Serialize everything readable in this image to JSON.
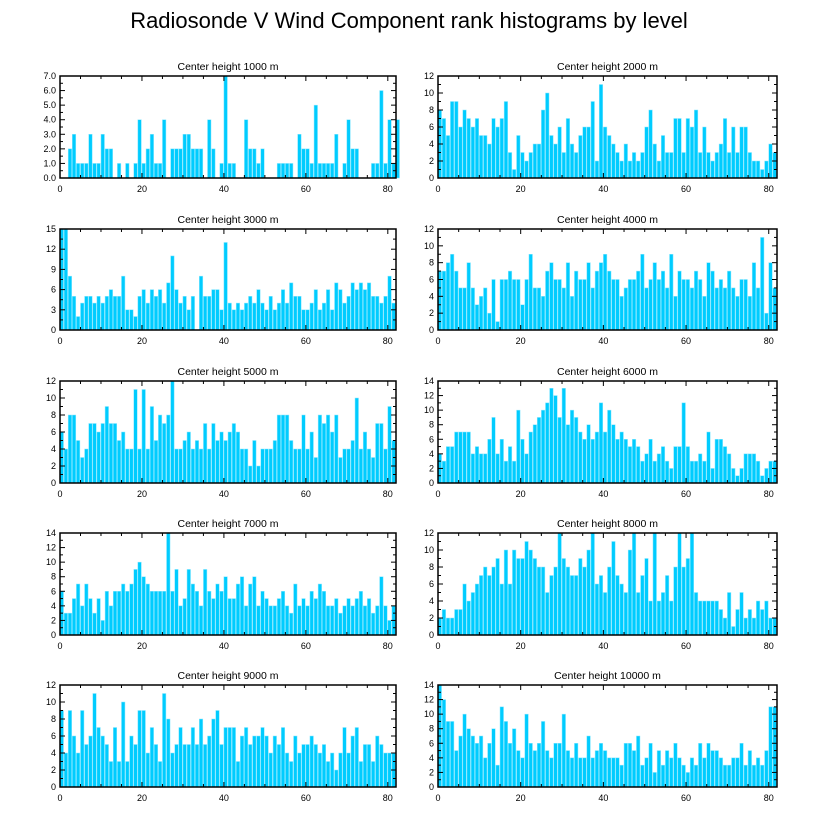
{
  "title": "Radiosonde V Wind Component rank histograms by level",
  "colors": {
    "bar": "#00ccff",
    "bar_edge": "#8ee8ff",
    "frame": "#000000"
  },
  "chart_data": [
    {
      "type": "bar",
      "title": "Center height 1000 m",
      "xlim": [
        0,
        82
      ],
      "ylim": [
        0,
        7
      ],
      "xticks": [
        0,
        20,
        40,
        60,
        80
      ],
      "yticks": [
        0,
        1,
        2,
        3,
        4,
        5,
        6,
        7
      ],
      "yticklabels": [
        "0.0",
        "1.0",
        "2.0",
        "3.0",
        "4.0",
        "5.0",
        "6.0",
        "7.0"
      ],
      "values": [
        0,
        0,
        2,
        3,
        1,
        1,
        1,
        3,
        1,
        1,
        3,
        2,
        2,
        0,
        1,
        0,
        1,
        0,
        1,
        4,
        1,
        2,
        3,
        1,
        1,
        4,
        0,
        2,
        2,
        2,
        3,
        3,
        2,
        2,
        2,
        0,
        4,
        2,
        0,
        1,
        7,
        1,
        1,
        0,
        0,
        4,
        2,
        2,
        1,
        2,
        0,
        0,
        0,
        1,
        1,
        1,
        1,
        0,
        3,
        2,
        2,
        1,
        5,
        1,
        1,
        1,
        1,
        3,
        0,
        1,
        4,
        2,
        2,
        0,
        0,
        0,
        1,
        1,
        6,
        1,
        4,
        1,
        4
      ]
    },
    {
      "type": "bar",
      "title": "Center height 2000 m",
      "xlim": [
        0,
        82
      ],
      "ylim": [
        0,
        12
      ],
      "xticks": [
        0,
        20,
        40,
        60,
        80
      ],
      "yticks": [
        0,
        2,
        4,
        6,
        8,
        10,
        12
      ],
      "yticklabels": [
        "0",
        "2",
        "4",
        "6",
        "8",
        "10",
        "12"
      ],
      "values": [
        8,
        7,
        5,
        9,
        9,
        6,
        8,
        7,
        6,
        7,
        5,
        5,
        4,
        7,
        6,
        7,
        9,
        3,
        1,
        5,
        3,
        2,
        3,
        4,
        4,
        8,
        10,
        5,
        4,
        6,
        3,
        7,
        4,
        3,
        5,
        6,
        6,
        9,
        2,
        11,
        6,
        5,
        4,
        3,
        2,
        4,
        2,
        3,
        2,
        3,
        6,
        8,
        4,
        2,
        5,
        3,
        3,
        7,
        7,
        3,
        7,
        6,
        8,
        3,
        6,
        3,
        2,
        3,
        4,
        7,
        3,
        6,
        3,
        6,
        6,
        3,
        2,
        2,
        1,
        2,
        4,
        3
      ]
    },
    {
      "type": "bar",
      "title": "Center height 3000 m",
      "xlim": [
        0,
        82
      ],
      "ylim": [
        0,
        15
      ],
      "xticks": [
        0,
        20,
        40,
        60,
        80
      ],
      "yticks": [
        0,
        3,
        6,
        9,
        12,
        15
      ],
      "yticklabels": [
        "0",
        "3",
        "6",
        "9",
        "12",
        "15"
      ],
      "values": [
        15,
        15,
        8,
        5,
        2,
        4,
        5,
        5,
        4,
        5,
        4,
        5,
        6,
        5,
        5,
        8,
        3,
        3,
        2,
        5,
        6,
        4,
        6,
        5,
        6,
        4,
        7,
        11,
        6,
        4,
        5,
        3,
        5,
        0,
        8,
        5,
        5,
        6,
        6,
        3,
        13,
        4,
        3,
        4,
        3,
        4,
        5,
        4,
        6,
        4,
        3,
        5,
        3,
        4,
        6,
        4,
        7,
        5,
        5,
        3,
        3,
        4,
        6,
        3,
        4,
        6,
        3,
        7,
        6,
        4,
        5,
        7,
        6,
        7,
        6,
        7,
        5,
        5,
        4,
        5,
        8,
        4
      ]
    },
    {
      "type": "bar",
      "title": "Center height 4000 m",
      "xlim": [
        0,
        82
      ],
      "ylim": [
        0,
        12
      ],
      "xticks": [
        0,
        20,
        40,
        60,
        80
      ],
      "yticks": [
        0,
        2,
        4,
        6,
        8,
        10,
        12
      ],
      "yticklabels": [
        "0",
        "2",
        "4",
        "6",
        "8",
        "10",
        "12"
      ],
      "values": [
        7,
        7,
        8,
        9,
        7,
        5,
        5,
        8,
        5,
        3,
        4,
        5,
        2,
        6,
        1,
        6,
        6,
        7,
        6,
        6,
        3,
        6,
        9,
        5,
        5,
        4,
        7,
        8,
        6,
        6,
        5,
        8,
        4,
        7,
        6,
        6,
        8,
        5,
        7,
        8,
        9,
        7,
        6,
        6,
        4,
        5,
        6,
        6,
        7,
        9,
        5,
        6,
        8,
        6,
        7,
        5,
        9,
        4,
        7,
        6,
        6,
        5,
        7,
        6,
        4,
        8,
        7,
        5,
        6,
        5,
        7,
        5,
        4,
        6,
        6,
        4,
        8,
        5,
        11,
        2,
        8,
        5
      ]
    },
    {
      "type": "bar",
      "title": "Center height 5000 m",
      "xlim": [
        0,
        82
      ],
      "ylim": [
        0,
        12
      ],
      "xticks": [
        0,
        20,
        40,
        60,
        80
      ],
      "yticks": [
        0,
        2,
        4,
        6,
        8,
        10,
        12
      ],
      "yticklabels": [
        "0",
        "2",
        "4",
        "6",
        "8",
        "10",
        "12"
      ],
      "values": [
        6,
        4,
        8,
        8,
        5,
        3,
        4,
        7,
        7,
        6,
        7,
        9,
        7,
        7,
        5,
        6,
        4,
        4,
        11,
        4,
        11,
        4,
        9,
        5,
        8,
        7,
        8,
        12,
        4,
        4,
        5,
        6,
        4,
        5,
        4,
        7,
        4,
        7,
        5,
        6,
        5,
        6,
        7,
        6,
        4,
        4,
        2,
        5,
        2,
        4,
        4,
        4,
        5,
        8,
        8,
        8,
        5,
        4,
        4,
        8,
        4,
        6,
        3,
        8,
        7,
        8,
        6,
        8,
        3,
        4,
        4,
        5,
        10,
        4,
        6,
        4,
        3,
        7,
        7,
        4,
        9,
        5
      ]
    },
    {
      "type": "bar",
      "title": "Center height 6000 m",
      "xlim": [
        0,
        82
      ],
      "ylim": [
        0,
        14
      ],
      "xticks": [
        0,
        20,
        40,
        60,
        80
      ],
      "yticks": [
        0,
        2,
        4,
        6,
        8,
        10,
        12,
        14
      ],
      "yticklabels": [
        "0",
        "2",
        "4",
        "6",
        "8",
        "10",
        "12",
        "14"
      ],
      "values": [
        4,
        3,
        5,
        5,
        7,
        7,
        7,
        7,
        4,
        5,
        4,
        4,
        6,
        9,
        4,
        6,
        3,
        5,
        3,
        10,
        6,
        4,
        7,
        8,
        9,
        10,
        11,
        13,
        12,
        9,
        13,
        8,
        10,
        9,
        7,
        6,
        8,
        6,
        7,
        11,
        7,
        10,
        8,
        6,
        7,
        6,
        5,
        6,
        5,
        3,
        4,
        6,
        3,
        4,
        5,
        3,
        2,
        5,
        5,
        11,
        5,
        3,
        3,
        4,
        3,
        7,
        2,
        6,
        6,
        5,
        4,
        2,
        1,
        2,
        4,
        4,
        4,
        3,
        1,
        2,
        3,
        3
      ]
    },
    {
      "type": "bar",
      "title": "Center height 7000 m",
      "xlim": [
        0,
        82
      ],
      "ylim": [
        0,
        14
      ],
      "xticks": [
        0,
        20,
        40,
        60,
        80
      ],
      "yticks": [
        0,
        2,
        4,
        6,
        8,
        10,
        12,
        14
      ],
      "yticklabels": [
        "0",
        "2",
        "4",
        "6",
        "8",
        "10",
        "12",
        "14"
      ],
      "values": [
        6,
        3,
        3,
        5,
        7,
        4,
        7,
        5,
        3,
        5,
        2,
        6,
        4,
        6,
        6,
        7,
        6,
        7,
        9,
        10,
        8,
        7,
        6,
        6,
        6,
        6,
        14,
        6,
        9,
        4,
        5,
        9,
        7,
        6,
        4,
        9,
        6,
        5,
        7,
        6,
        8,
        5,
        5,
        7,
        8,
        4,
        7,
        8,
        4,
        6,
        5,
        4,
        4,
        5,
        6,
        4,
        3,
        7,
        4,
        5,
        4,
        6,
        5,
        7,
        6,
        4,
        4,
        5,
        3,
        4,
        5,
        4,
        5,
        6,
        4,
        5,
        3,
        4,
        8,
        4,
        2,
        4
      ]
    },
    {
      "type": "bar",
      "title": "Center height 8000 m",
      "xlim": [
        0,
        82
      ],
      "ylim": [
        0,
        12
      ],
      "xticks": [
        0,
        20,
        40,
        60,
        80
      ],
      "yticks": [
        0,
        2,
        4,
        6,
        8,
        10,
        12
      ],
      "yticklabels": [
        "0",
        "2",
        "4",
        "6",
        "8",
        "10",
        "12"
      ],
      "values": [
        2,
        3,
        2,
        2,
        3,
        3,
        6,
        4,
        5,
        6,
        7,
        8,
        7,
        8,
        9,
        6,
        10,
        6,
        10,
        9,
        9,
        11,
        10,
        9,
        8,
        8,
        5,
        7,
        8,
        12,
        9,
        8,
        7,
        7,
        9,
        8,
        10,
        12,
        6,
        7,
        5,
        8,
        11,
        7,
        6,
        5,
        10,
        12,
        5,
        7,
        9,
        4,
        12,
        4,
        5,
        7,
        4,
        8,
        12,
        8,
        9,
        12,
        5,
        4,
        4,
        4,
        4,
        4,
        3,
        2,
        5,
        1,
        3,
        5,
        2,
        3,
        2,
        4,
        3,
        4,
        2,
        2
      ]
    },
    {
      "type": "bar",
      "title": "Center height 9000 m",
      "xlim": [
        0,
        82
      ],
      "ylim": [
        0,
        12
      ],
      "xticks": [
        0,
        20,
        40,
        60,
        80
      ],
      "yticks": [
        0,
        2,
        4,
        6,
        8,
        10,
        12
      ],
      "yticklabels": [
        "0",
        "2",
        "4",
        "6",
        "8",
        "10",
        "12"
      ],
      "values": [
        9,
        4,
        9,
        6,
        4,
        9,
        5,
        6,
        11,
        7,
        6,
        5,
        3,
        7,
        3,
        10,
        3,
        6,
        5,
        9,
        9,
        4,
        7,
        5,
        3,
        11,
        8,
        4,
        5,
        7,
        5,
        5,
        7,
        5,
        8,
        5,
        6,
        8,
        9,
        5,
        7,
        7,
        7,
        3,
        6,
        7,
        5,
        6,
        6,
        7,
        6,
        4,
        6,
        5,
        7,
        4,
        3,
        6,
        4,
        5,
        5,
        6,
        5,
        4,
        5,
        3,
        4,
        2,
        4,
        7,
        4,
        6,
        7,
        3,
        5,
        5,
        3,
        6,
        5,
        4,
        4,
        4
      ]
    },
    {
      "type": "bar",
      "title": "Center height 10000 m",
      "xlim": [
        0,
        82
      ],
      "ylim": [
        0,
        14
      ],
      "xticks": [
        0,
        20,
        40,
        60,
        80
      ],
      "yticks": [
        0,
        2,
        4,
        6,
        8,
        10,
        12,
        14
      ],
      "yticklabels": [
        "0",
        "2",
        "4",
        "6",
        "8",
        "10",
        "12",
        "14"
      ],
      "values": [
        14,
        12,
        9,
        9,
        5,
        7,
        10,
        8,
        7,
        6,
        7,
        4,
        6,
        8,
        3,
        11,
        9,
        6,
        8,
        5,
        4,
        10,
        6,
        5,
        6,
        9,
        5,
        4,
        6,
        6,
        10,
        5,
        4,
        6,
        4,
        4,
        7,
        4,
        5,
        6,
        5,
        4,
        4,
        4,
        3,
        6,
        6,
        5,
        7,
        3,
        4,
        6,
        2,
        5,
        3,
        5,
        4,
        6,
        4,
        3,
        2,
        4,
        3,
        6,
        4,
        6,
        5,
        5,
        4,
        3,
        3,
        4,
        4,
        6,
        3,
        5,
        3,
        4,
        3,
        5,
        11,
        11
      ]
    }
  ]
}
